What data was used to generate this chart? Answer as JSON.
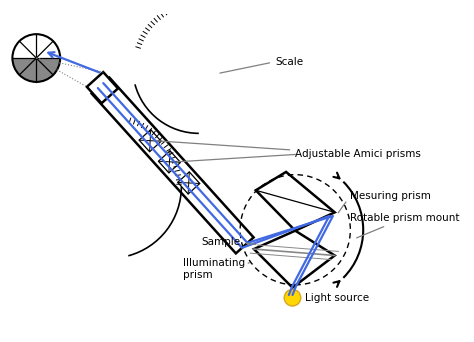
{
  "background_color": "#ffffff",
  "labels": {
    "scale": "Scale",
    "amici": "Adjustable Amici prisms",
    "measuring": "Mesuring prism",
    "rotable": "Rotable prism mount",
    "sample": "Sample",
    "illuminating": "Illuminating\nprism",
    "light": "Light source"
  },
  "colors": {
    "black": "#000000",
    "blue": "#4169E1",
    "gray": "#808080",
    "yellow": "#FFD700",
    "dark_yellow": "#DAA520",
    "mid_gray": "#888888"
  }
}
